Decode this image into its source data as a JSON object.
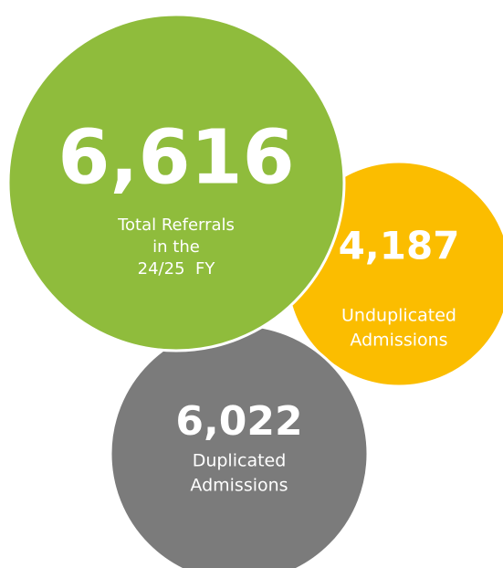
{
  "circles": [
    {
      "value": "6,022",
      "lines": [
        "Duplicated",
        "Admissions"
      ],
      "color": "#7b7b7b"
    },
    {
      "value": "4,187",
      "lines": [
        "Unduplicated",
        "Admissions"
      ],
      "color": "#fbbd00"
    },
    {
      "value": "6,616",
      "lines": [
        "Total Referrals",
        "in the",
        "24/25  FY"
      ],
      "color": "#8fbc3c"
    }
  ]
}
